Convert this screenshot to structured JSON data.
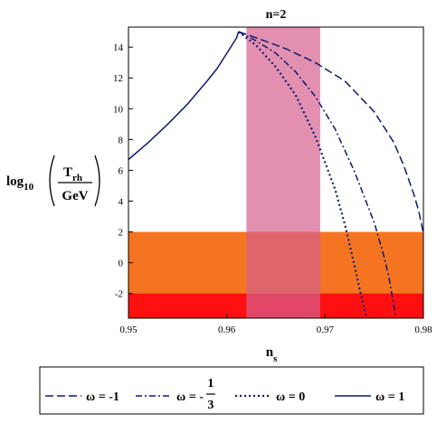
{
  "chart_data": {
    "type": "line",
    "title": "n=2",
    "xlabel": {
      "main": "n",
      "sub": "s"
    },
    "ylabel": {
      "prefix": "log",
      "prefix_sub": "10",
      "numer": "T",
      "numer_sub": "rh",
      "denom": "GeV"
    },
    "xlim": [
      0.95,
      0.98
    ],
    "ylim": [
      -3.6,
      15.3
    ],
    "xticks": [
      0.95,
      0.96,
      0.97,
      0.98
    ],
    "yticks": [
      -2,
      0,
      2,
      4,
      6,
      8,
      10,
      12,
      14
    ],
    "grid": false,
    "legend_position": "bottom",
    "bands": [
      {
        "axis": "y",
        "from": -3.6,
        "to": 2.0,
        "color": "#f47421"
      },
      {
        "axis": "y",
        "from": -3.6,
        "to": -2.0,
        "color": "#ff1010"
      },
      {
        "axis": "x",
        "from": 0.962,
        "to": 0.9695,
        "color": "#d65f8e",
        "opacity": 0.7
      }
    ],
    "series": [
      {
        "name": "ω = -1",
        "dash": "long-dash",
        "color": "#0d1a73",
        "x": [
          0.9612,
          0.963,
          0.966,
          0.969,
          0.972,
          0.975,
          0.977,
          0.978,
          0.979,
          0.9795,
          0.98
        ],
        "y": [
          15.0,
          14.6,
          13.9,
          13.0,
          11.8,
          9.8,
          7.8,
          6.3,
          4.5,
          3.4,
          1.9
        ]
      },
      {
        "name": "ω = -1/3",
        "dash": "dash-dot",
        "color": "#0d1a73",
        "x": [
          0.9612,
          0.963,
          0.965,
          0.967,
          0.969,
          0.971,
          0.973,
          0.975,
          0.976,
          0.9765,
          0.977,
          0.9772
        ],
        "y": [
          15.0,
          14.4,
          13.6,
          12.4,
          10.8,
          8.7,
          5.9,
          2.6,
          0.4,
          -1.0,
          -2.8,
          -3.6
        ]
      },
      {
        "name": "ω = 0",
        "dash": "dot",
        "color": "#0d1a73",
        "x": [
          0.9612,
          0.963,
          0.965,
          0.967,
          0.969,
          0.971,
          0.972,
          0.973,
          0.9735,
          0.974,
          0.9742
        ],
        "y": [
          15.0,
          14.1,
          12.7,
          10.9,
          8.2,
          4.8,
          2.5,
          -0.2,
          -1.7,
          -3.0,
          -3.6
        ]
      },
      {
        "name": "ω = 1",
        "dash": "solid",
        "color": "#0d1a73",
        "x": [
          0.95,
          0.952,
          0.954,
          0.956,
          0.958,
          0.959,
          0.96,
          0.961,
          0.9612
        ],
        "y": [
          6.7,
          7.8,
          9.0,
          10.3,
          11.8,
          12.6,
          13.6,
          14.6,
          15.0
        ]
      }
    ],
    "legend": [
      {
        "prefix": "ω = -1"
      },
      {
        "prefix": "ω = -",
        "frac_num": "1",
        "frac_den": "3"
      },
      {
        "prefix": "ω = 0"
      },
      {
        "prefix": "ω = 1"
      }
    ]
  }
}
